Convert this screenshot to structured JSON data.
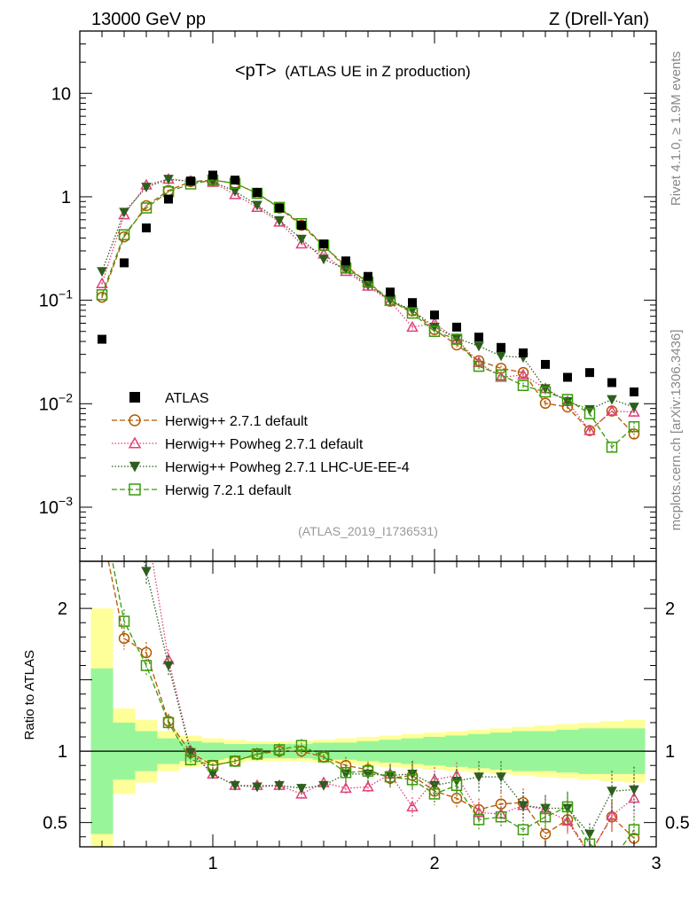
{
  "header": {
    "left": "13000 GeV pp",
    "right": "Z (Drell-Yan)"
  },
  "side_labels": {
    "rivet": "Rivet 4.1.0, ≥ 1.9M events",
    "mcplots": "mcplots.cern.ch [arXiv:1306.3436]"
  },
  "chart_data": {
    "type": "scatter",
    "title_main": "<pT>",
    "title_sub": "(ATLAS UE in Z production)",
    "analysis_id": "(ATLAS_2019_I1736531)",
    "ratio_ylabel": "Ratio to ATLAS",
    "x_range": [
      0.4,
      3.0
    ],
    "y_range_main": [
      0.0003,
      40
    ],
    "y_scale_main": "log",
    "y_range_ratio": [
      0.33,
      2.33
    ],
    "main_y_ticks": [
      {
        "value": 10,
        "label": "10"
      },
      {
        "value": 1,
        "label": "1"
      },
      {
        "value": 0.1,
        "base": "10",
        "exp": "−1"
      },
      {
        "value": 0.01,
        "base": "10",
        "exp": "−2"
      },
      {
        "value": 0.001,
        "base": "10",
        "exp": "−3"
      }
    ],
    "ratio_y_ticks": [
      {
        "value": 2,
        "label": "2"
      },
      {
        "value": 1,
        "label": "1"
      },
      {
        "value": 0.5,
        "label": "0.5"
      }
    ],
    "x_ticks": [
      {
        "value": 1,
        "label": "1"
      },
      {
        "value": 2,
        "label": "2"
      },
      {
        "value": 3,
        "label": "3"
      }
    ],
    "x": [
      0.5,
      0.6,
      0.7,
      0.8,
      0.9,
      1.0,
      1.1,
      1.2,
      1.3,
      1.4,
      1.5,
      1.6,
      1.7,
      1.8,
      1.9,
      2.0,
      2.1,
      2.2,
      2.3,
      2.4,
      2.5,
      2.6,
      2.7,
      2.8,
      2.9
    ],
    "data": {
      "name": "ATLAS",
      "values": [
        0.042,
        0.23,
        0.5,
        0.95,
        1.42,
        1.62,
        1.45,
        1.1,
        0.78,
        0.53,
        0.35,
        0.24,
        0.17,
        0.12,
        0.095,
        0.072,
        0.055,
        0.044,
        0.035,
        0.031,
        0.024,
        0.018,
        0.02,
        0.016,
        0.013
      ],
      "band_inner": [
        0.58,
        0.2,
        0.14,
        0.09,
        0.07,
        0.06,
        0.05,
        0.05,
        0.05,
        0.05,
        0.06,
        0.06,
        0.07,
        0.08,
        0.09,
        0.1,
        0.11,
        0.12,
        0.13,
        0.14,
        0.14,
        0.15,
        0.16,
        0.16,
        0.16
      ],
      "band_outer": [
        1.0,
        0.3,
        0.22,
        0.14,
        0.11,
        0.09,
        0.08,
        0.07,
        0.07,
        0.07,
        0.08,
        0.09,
        0.1,
        0.11,
        0.12,
        0.13,
        0.14,
        0.15,
        0.16,
        0.17,
        0.18,
        0.19,
        0.2,
        0.21,
        0.22
      ]
    },
    "series": [
      {
        "name": "Herwig++ 2.7.1 default",
        "color": "#b35900",
        "marker": "circle",
        "dash": "6,3",
        "values": [
          0.107,
          0.41,
          0.82,
          1.15,
          1.4,
          1.45,
          1.35,
          1.08,
          0.78,
          0.53,
          0.335,
          0.215,
          0.148,
          0.098,
          0.079,
          0.052,
          0.037,
          0.026,
          0.022,
          0.02,
          0.0101,
          0.0093,
          0.0055,
          0.0085,
          0.0051
        ],
        "ratio": [
          2.55,
          1.79,
          1.69,
          1.21,
          0.99,
          0.9,
          0.93,
          0.98,
          1.0,
          1.0,
          0.96,
          0.9,
          0.87,
          0.81,
          0.83,
          0.72,
          0.67,
          0.59,
          0.63,
          0.64,
          0.42,
          0.52,
          0.28,
          0.54,
          0.39
        ],
        "err": [
          0.02,
          0.02,
          0.02,
          0.02,
          0.02,
          0.02,
          0.02,
          0.02,
          0.02,
          0.02,
          0.02,
          0.03,
          0.03,
          0.04,
          0.05,
          0.05,
          0.05,
          0.06,
          0.06,
          0.07,
          0.07,
          0.08,
          0.08,
          0.09,
          0.1
        ]
      },
      {
        "name": "Herwig++ Powheg 2.7.1 default",
        "color": "#e0407a",
        "marker": "triangle",
        "dash": "1.5,2",
        "values": [
          0.145,
          0.67,
          1.3,
          1.48,
          1.42,
          1.38,
          1.05,
          0.79,
          0.57,
          0.35,
          0.28,
          0.19,
          0.137,
          0.098,
          0.055,
          0.06,
          0.042,
          0.025,
          0.018,
          0.019,
          0.014,
          0.0105,
          0.0055,
          0.0085,
          0.0083
        ],
        "ratio": [
          3.45,
          2.9,
          2.6,
          1.64,
          1.0,
          0.84,
          0.76,
          0.76,
          0.76,
          0.7,
          0.78,
          0.74,
          0.75,
          0.84,
          0.61,
          0.8,
          0.83,
          0.57,
          0.56,
          0.62,
          0.59,
          0.51,
          0.27,
          0.55,
          0.67
        ],
        "err": [
          0.02,
          0.02,
          0.02,
          0.02,
          0.02,
          0.02,
          0.02,
          0.02,
          0.02,
          0.02,
          0.02,
          0.03,
          0.03,
          0.04,
          0.05,
          0.05,
          0.05,
          0.06,
          0.06,
          0.07,
          0.07,
          0.08,
          0.08,
          0.09,
          0.1
        ]
      },
      {
        "name": "Herwig++ Powheg 2.7.1 LHC-UE-EE-4",
        "color": "#2e5e1e",
        "marker": "triangle-down",
        "dash": "1.5,2",
        "values": [
          0.19,
          0.71,
          1.24,
          1.48,
          1.4,
          1.4,
          1.13,
          0.83,
          0.59,
          0.39,
          0.25,
          0.2,
          0.14,
          0.1,
          0.08,
          0.055,
          0.043,
          0.036,
          0.029,
          0.028,
          0.014,
          0.0105,
          0.0088,
          0.011,
          0.0093
        ],
        "ratio": [
          4.5,
          3.1,
          2.26,
          1.6,
          0.99,
          0.84,
          0.76,
          0.75,
          0.76,
          0.74,
          0.76,
          0.84,
          0.84,
          0.83,
          0.84,
          0.76,
          0.79,
          0.82,
          0.82,
          0.62,
          0.6,
          0.6,
          0.42,
          0.72,
          0.73
        ],
        "err": [
          0.02,
          0.02,
          0.02,
          0.02,
          0.02,
          0.02,
          0.02,
          0.02,
          0.02,
          0.02,
          0.02,
          0.03,
          0.03,
          0.04,
          0.05,
          0.05,
          0.05,
          0.06,
          0.06,
          0.07,
          0.07,
          0.08,
          0.08,
          0.09,
          0.1
        ]
      },
      {
        "name": "Herwig 7.2.1 default",
        "color": "#3a9a0a",
        "marker": "square",
        "dash": "6,3",
        "values": [
          0.113,
          0.43,
          0.78,
          1.12,
          1.33,
          1.45,
          1.35,
          1.08,
          0.79,
          0.55,
          0.34,
          0.205,
          0.15,
          0.1,
          0.075,
          0.05,
          0.042,
          0.023,
          0.019,
          0.015,
          0.013,
          0.011,
          0.008,
          0.0038,
          0.006
        ],
        "ratio": [
          2.7,
          1.91,
          1.6,
          1.2,
          0.94,
          0.9,
          0.93,
          0.98,
          1.01,
          1.04,
          0.96,
          0.85,
          0.86,
          0.82,
          0.8,
          0.7,
          0.76,
          0.52,
          0.54,
          0.45,
          0.54,
          0.61,
          0.35,
          0.23,
          0.45
        ],
        "err": [
          0.02,
          0.02,
          0.02,
          0.02,
          0.02,
          0.02,
          0.02,
          0.02,
          0.02,
          0.02,
          0.02,
          0.03,
          0.03,
          0.04,
          0.05,
          0.05,
          0.05,
          0.06,
          0.06,
          0.07,
          0.07,
          0.08,
          0.08,
          0.09,
          0.1
        ]
      }
    ]
  }
}
